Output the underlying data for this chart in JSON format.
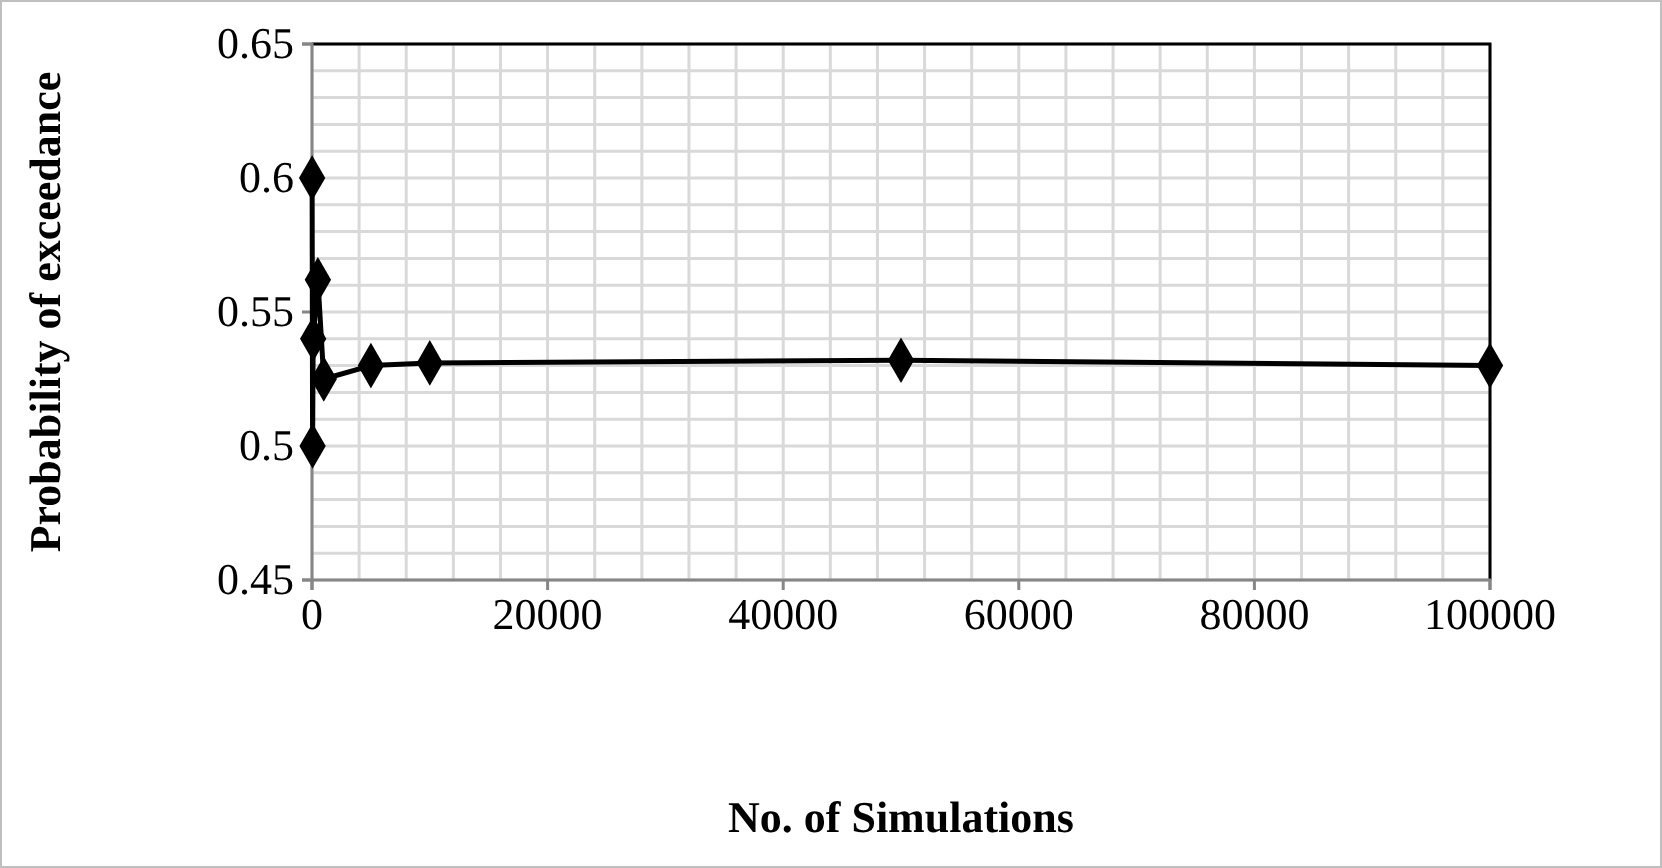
{
  "chart_data": {
    "type": "line",
    "xlabel": "No. of Simulations",
    "ylabel": "Probability of exceedance",
    "x": [
      10,
      50,
      100,
      500,
      1000,
      5000,
      10000,
      50000,
      100000
    ],
    "series": [
      {
        "color": "#000000",
        "values": [
          0.6,
          0.5,
          0.54,
          0.562,
          0.525,
          0.53,
          0.531,
          0.532,
          0.53
        ]
      }
    ],
    "xlim": [
      0,
      100000
    ],
    "xticks": [
      0,
      {
        "value": 4000,
        "label": null
      },
      {
        "value": 8000,
        "label": null
      },
      {
        "value": 12000,
        "label": null
      },
      {
        "value": 16000,
        "label": null
      },
      20000,
      {
        "value": 24000,
        "label": null
      },
      {
        "value": 28000,
        "label": null
      },
      {
        "value": 32000,
        "label": null
      },
      {
        "value": 36000,
        "label": null
      },
      40000,
      {
        "value": 44000,
        "label": null
      },
      {
        "value": 48000,
        "label": null
      },
      {
        "value": 52000,
        "label": null
      },
      {
        "value": 56000,
        "label": null
      },
      60000,
      {
        "value": 64000,
        "label": null
      },
      {
        "value": 68000,
        "label": null
      },
      {
        "value": 72000,
        "label": null
      },
      {
        "value": 76000,
        "label": null
      },
      80000,
      {
        "value": 84000,
        "label": null
      },
      {
        "value": 88000,
        "label": null
      },
      {
        "value": 92000,
        "label": null
      },
      {
        "value": 96000,
        "label": null
      },
      100000
    ],
    "ylim": [
      0.45,
      0.65
    ],
    "yticks": [
      0.45,
      {
        "value": 0.46,
        "label": null
      },
      {
        "value": 0.47,
        "label": null
      },
      {
        "value": 0.48,
        "label": null
      },
      {
        "value": 0.49,
        "label": null
      },
      0.5,
      {
        "value": 0.51,
        "label": null
      },
      {
        "value": 0.52,
        "label": null
      },
      {
        "value": 0.53,
        "label": null
      },
      {
        "value": 0.54,
        "label": null
      },
      0.55,
      {
        "value": 0.56,
        "label": null
      },
      {
        "value": 0.57,
        "label": null
      },
      {
        "value": 0.58,
        "label": null
      },
      {
        "value": 0.59,
        "label": null
      },
      0.6,
      {
        "value": 0.61,
        "label": null
      },
      {
        "value": 0.62,
        "label": null
      },
      {
        "value": 0.63,
        "label": null
      },
      {
        "value": 0.64,
        "label": null
      },
      0.65
    ],
    "grid": true,
    "marker": "diamond",
    "line_style": "solid"
  }
}
